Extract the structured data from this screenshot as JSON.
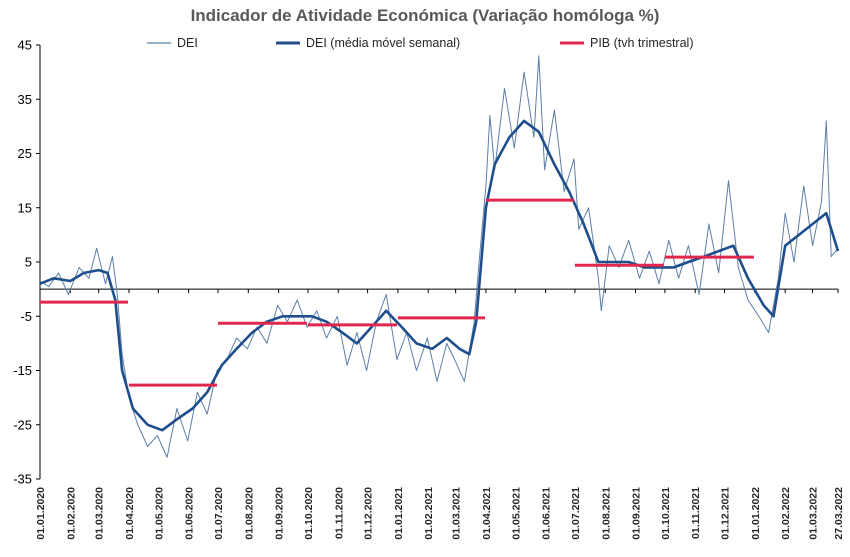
{
  "chart_data": {
    "type": "line",
    "title": "Indicador de Atividade Económica (Variação homóloga %)",
    "ylim": [
      -35,
      45
    ],
    "yticks": [
      -35,
      -25,
      -15,
      -5,
      5,
      15,
      25,
      35,
      45
    ],
    "x_range": [
      "2020-01-01",
      "2022-03-27"
    ],
    "x_ticks": [
      "01.01.2020",
      "01.02.2020",
      "01.03.2020",
      "01.04.2020",
      "01.05.2020",
      "01.06.2020",
      "01.07.2020",
      "01.08.2020",
      "01.09.2020",
      "01.10.2020",
      "01.11.2020",
      "01.12.2020",
      "01.01.2021",
      "01.02.2021",
      "01.03.2021",
      "01.04.2021",
      "01.05.2021",
      "01.06.2021",
      "01.07.2021",
      "01.08.2021",
      "01.09.2021",
      "01.10.2021",
      "01.11.2021",
      "01.12.2021",
      "01.01.2022",
      "01.02.2022",
      "01.03.2022",
      "27.03.2022"
    ],
    "grid": false,
    "legend_position": "top",
    "colors": {
      "dei": "#5b7fa8",
      "dei_ma": "#1f4e8c",
      "pib": "#e0284f"
    },
    "series": [
      {
        "name": "DEI",
        "style": "thin",
        "points": [
          [
            "2020-01-01",
            1.5
          ],
          [
            "2020-01-10",
            0.5
          ],
          [
            "2020-01-20",
            3.0
          ],
          [
            "2020-01-30",
            -1.0
          ],
          [
            "2020-02-10",
            4.0
          ],
          [
            "2020-02-20",
            2.0
          ],
          [
            "2020-02-28",
            7.5
          ],
          [
            "2020-03-08",
            1.0
          ],
          [
            "2020-03-15",
            6.0
          ],
          [
            "2020-03-20",
            -1.0
          ],
          [
            "2020-03-25",
            -12.0
          ],
          [
            "2020-04-01",
            -20.0
          ],
          [
            "2020-04-10",
            -25.0
          ],
          [
            "2020-04-20",
            -29.0
          ],
          [
            "2020-04-30",
            -27.0
          ],
          [
            "2020-05-10",
            -31.0
          ],
          [
            "2020-05-20",
            -22.0
          ],
          [
            "2020-05-31",
            -28.0
          ],
          [
            "2020-06-10",
            -19.0
          ],
          [
            "2020-06-20",
            -23.0
          ],
          [
            "2020-06-30",
            -15.0
          ],
          [
            "2020-07-10",
            -13.0
          ],
          [
            "2020-07-20",
            -9.0
          ],
          [
            "2020-07-31",
            -11.0
          ],
          [
            "2020-08-10",
            -7.0
          ],
          [
            "2020-08-20",
            -10.0
          ],
          [
            "2020-08-31",
            -3.0
          ],
          [
            "2020-09-10",
            -6.0
          ],
          [
            "2020-09-20",
            -2.0
          ],
          [
            "2020-09-30",
            -7.0
          ],
          [
            "2020-10-10",
            -4.0
          ],
          [
            "2020-10-20",
            -9.0
          ],
          [
            "2020-10-31",
            -5.0
          ],
          [
            "2020-11-10",
            -14.0
          ],
          [
            "2020-11-20",
            -8.0
          ],
          [
            "2020-11-30",
            -15.0
          ],
          [
            "2020-12-10",
            -6.0
          ],
          [
            "2020-12-20",
            -1.0
          ],
          [
            "2020-12-31",
            -13.0
          ],
          [
            "2021-01-10",
            -8.0
          ],
          [
            "2021-01-20",
            -15.0
          ],
          [
            "2021-01-31",
            -9.0
          ],
          [
            "2021-02-10",
            -17.0
          ],
          [
            "2021-02-20",
            -10.0
          ],
          [
            "2021-02-28",
            -13.0
          ],
          [
            "2021-03-10",
            -17.0
          ],
          [
            "2021-03-20",
            -6.0
          ],
          [
            "2021-03-25",
            5.0
          ],
          [
            "2021-04-01",
            19.0
          ],
          [
            "2021-04-05",
            32.0
          ],
          [
            "2021-04-10",
            22.0
          ],
          [
            "2021-04-20",
            37.0
          ],
          [
            "2021-04-30",
            26.0
          ],
          [
            "2021-05-10",
            40.0
          ],
          [
            "2021-05-20",
            28.0
          ],
          [
            "2021-05-25",
            43.0
          ],
          [
            "2021-05-31",
            22.0
          ],
          [
            "2021-06-10",
            33.0
          ],
          [
            "2021-06-20",
            18.0
          ],
          [
            "2021-06-30",
            24.0
          ],
          [
            "2021-07-05",
            11.0
          ],
          [
            "2021-07-15",
            15.0
          ],
          [
            "2021-07-25",
            2.0
          ],
          [
            "2021-07-28",
            -4.0
          ],
          [
            "2021-08-05",
            8.0
          ],
          [
            "2021-08-15",
            4.0
          ],
          [
            "2021-08-25",
            9.0
          ],
          [
            "2021-09-05",
            2.0
          ],
          [
            "2021-09-15",
            7.0
          ],
          [
            "2021-09-25",
            1.0
          ],
          [
            "2021-10-05",
            9.0
          ],
          [
            "2021-10-15",
            2.0
          ],
          [
            "2021-10-25",
            8.0
          ],
          [
            "2021-11-05",
            -1.0
          ],
          [
            "2021-11-15",
            12.0
          ],
          [
            "2021-11-25",
            3.0
          ],
          [
            "2021-12-05",
            20.0
          ],
          [
            "2021-12-15",
            4.0
          ],
          [
            "2021-12-25",
            -2.0
          ],
          [
            "2022-01-05",
            -5.0
          ],
          [
            "2022-01-15",
            -8.0
          ],
          [
            "2022-01-25",
            2.0
          ],
          [
            "2022-02-01",
            14.0
          ],
          [
            "2022-02-10",
            5.0
          ],
          [
            "2022-02-20",
            19.0
          ],
          [
            "2022-03-01",
            8.0
          ],
          [
            "2022-03-10",
            16.0
          ],
          [
            "2022-03-15",
            31.0
          ],
          [
            "2022-03-20",
            6.0
          ],
          [
            "2022-03-27",
            7.5
          ]
        ]
      },
      {
        "name": "DEI (média móvel semanal)",
        "style": "thick",
        "points": [
          [
            "2020-01-01",
            1.0
          ],
          [
            "2020-01-15",
            2.0
          ],
          [
            "2020-02-01",
            1.5
          ],
          [
            "2020-02-15",
            3.0
          ],
          [
            "2020-03-01",
            3.5
          ],
          [
            "2020-03-10",
            3.0
          ],
          [
            "2020-03-18",
            -2.0
          ],
          [
            "2020-03-25",
            -15.0
          ],
          [
            "2020-04-05",
            -22.0
          ],
          [
            "2020-04-20",
            -25.0
          ],
          [
            "2020-05-05",
            -26.0
          ],
          [
            "2020-05-20",
            -24.0
          ],
          [
            "2020-06-05",
            -22.0
          ],
          [
            "2020-06-20",
            -19.0
          ],
          [
            "2020-07-05",
            -14.0
          ],
          [
            "2020-07-20",
            -11.0
          ],
          [
            "2020-08-05",
            -8.0
          ],
          [
            "2020-08-20",
            -6.0
          ],
          [
            "2020-09-05",
            -5.0
          ],
          [
            "2020-09-20",
            -5.0
          ],
          [
            "2020-10-05",
            -5.0
          ],
          [
            "2020-10-20",
            -6.0
          ],
          [
            "2020-11-05",
            -8.0
          ],
          [
            "2020-11-20",
            -10.0
          ],
          [
            "2020-12-05",
            -7.0
          ],
          [
            "2020-12-20",
            -4.0
          ],
          [
            "2021-01-05",
            -7.0
          ],
          [
            "2021-01-20",
            -10.0
          ],
          [
            "2021-02-05",
            -11.0
          ],
          [
            "2021-02-20",
            -9.0
          ],
          [
            "2021-03-05",
            -11.0
          ],
          [
            "2021-03-15",
            -12.0
          ],
          [
            "2021-03-22",
            -6.0
          ],
          [
            "2021-04-01",
            15.0
          ],
          [
            "2021-04-10",
            23.0
          ],
          [
            "2021-04-25",
            28.0
          ],
          [
            "2021-05-10",
            31.0
          ],
          [
            "2021-05-25",
            29.0
          ],
          [
            "2021-06-10",
            23.0
          ],
          [
            "2021-06-25",
            18.0
          ],
          [
            "2021-07-10",
            12.0
          ],
          [
            "2021-07-25",
            5.0
          ],
          [
            "2021-08-10",
            5.0
          ],
          [
            "2021-08-25",
            5.0
          ],
          [
            "2021-09-10",
            4.0
          ],
          [
            "2021-09-25",
            4.0
          ],
          [
            "2021-10-10",
            4.0
          ],
          [
            "2021-10-25",
            5.0
          ],
          [
            "2021-11-10",
            6.0
          ],
          [
            "2021-11-25",
            7.0
          ],
          [
            "2021-12-10",
            8.0
          ],
          [
            "2021-12-25",
            2.0
          ],
          [
            "2022-01-10",
            -3.0
          ],
          [
            "2022-01-20",
            -5.0
          ],
          [
            "2022-02-01",
            8.0
          ],
          [
            "2022-02-15",
            10.0
          ],
          [
            "2022-03-01",
            12.0
          ],
          [
            "2022-03-15",
            14.0
          ],
          [
            "2022-03-27",
            7.0
          ]
        ]
      },
      {
        "name": "PIB (tvh trimestral)",
        "style": "step",
        "segments": [
          {
            "start": "2020-01-01",
            "end": "2020-03-31",
            "value": -2.4
          },
          {
            "start": "2020-04-01",
            "end": "2020-06-30",
            "value": -17.7
          },
          {
            "start": "2020-07-01",
            "end": "2020-09-30",
            "value": -6.3
          },
          {
            "start": "2020-10-01",
            "end": "2020-12-31",
            "value": -6.6
          },
          {
            "start": "2021-01-01",
            "end": "2021-03-31",
            "value": -5.3
          },
          {
            "start": "2021-04-01",
            "end": "2021-06-30",
            "value": 16.4
          },
          {
            "start": "2021-07-01",
            "end": "2021-09-30",
            "value": 4.4
          },
          {
            "start": "2021-10-01",
            "end": "2021-12-31",
            "value": 5.9
          }
        ]
      }
    ]
  }
}
